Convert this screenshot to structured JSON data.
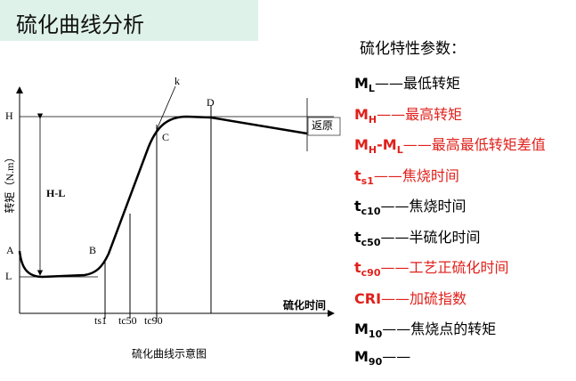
{
  "title": "硫化曲线分析",
  "diagram": {
    "caption": "硫化曲线示意图",
    "y_axis_label": "转矩（N.m）",
    "x_axis_label": "硫化时间",
    "level_labels": [
      "H",
      "L"
    ],
    "points": [
      "A",
      "B",
      "C",
      "D",
      "k"
    ],
    "span_label": "H-L",
    "reversion_label": "返原",
    "time_marks": [
      "ts1",
      "tc50",
      "tc90"
    ]
  },
  "params": {
    "heading": "硫化特性参数：",
    "items": [
      {
        "symbol": [
          {
            "t": "M",
            "s": "L"
          }
        ],
        "desc": "——最低转矩",
        "color": "#000000"
      },
      {
        "symbol": [
          {
            "t": "M",
            "s": "H"
          }
        ],
        "desc": "——最高转矩",
        "color": "#e0201b"
      },
      {
        "symbol": [
          {
            "t": "M",
            "s": "H"
          },
          {
            "t": "-M",
            "s": "L"
          }
        ],
        "desc": "——最高最低转矩差值",
        "color": "#e0201b"
      },
      {
        "symbol": [
          {
            "t": "t",
            "s": "s1"
          }
        ],
        "desc": "——焦烧时间",
        "color": "#e0201b"
      },
      {
        "symbol": [
          {
            "t": "t",
            "s": "c10"
          }
        ],
        "desc": "——焦烧时间",
        "color": "#000000"
      },
      {
        "symbol": [
          {
            "t": "t",
            "s": "c50"
          }
        ],
        "desc": "——半硫化时间",
        "color": "#000000"
      },
      {
        "symbol": [
          {
            "t": "t",
            "s": "c90"
          }
        ],
        "desc": "——工艺正硫化时间",
        "color": "#e0201b"
      },
      {
        "symbol": [
          {
            "t": "CRI"
          }
        ],
        "desc": "——加硫指数",
        "color": "#e0201b"
      },
      {
        "symbol": [
          {
            "t": "M",
            "s": "10"
          }
        ],
        "desc": "——焦烧点的转矩",
        "color": "#000000"
      },
      {
        "symbol": [
          {
            "t": "M",
            "s": "90"
          }
        ],
        "desc": "——",
        "color": "#000000"
      }
    ]
  }
}
